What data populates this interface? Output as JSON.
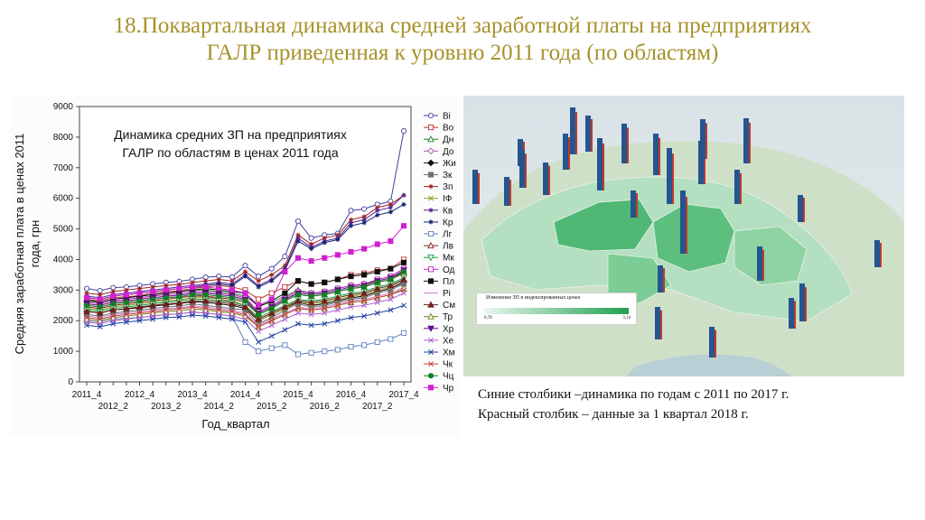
{
  "slide": {
    "title_line1": "18.Поквартальная динамика средней заработной платы на предприятиях",
    "title_line2": "ГАЛР приведенная к уровню 2011 года (по областям)"
  },
  "chart_data": {
    "type": "line",
    "title_line1": "Динамика средних ЗП на предприятиях",
    "title_line2": "ГАЛР по областям в ценах 2011 года",
    "xlabel": "Год_квартал",
    "ylabel_line1": "Средняя заработная плата в ценах 2011",
    "ylabel_line2": "года, грн",
    "ylim": [
      0,
      9000
    ],
    "yticks": [
      0,
      1000,
      2000,
      3000,
      4000,
      5000,
      6000,
      7000,
      8000,
      9000
    ],
    "x": [
      "2011_4",
      "2012_1",
      "2012_2",
      "2012_3",
      "2012_4",
      "2013_1",
      "2013_2",
      "2013_3",
      "2013_4",
      "2014_1",
      "2014_2",
      "2014_3",
      "2014_4",
      "2015_1",
      "2015_2",
      "2015_3",
      "2015_4",
      "2016_1",
      "2016_2",
      "2016_3",
      "2016_4",
      "2017_1",
      "2017_2",
      "2017_3",
      "2017_4"
    ],
    "xtick_labels_top": [
      "2011_4",
      "2012_4",
      "2013_4",
      "2014_4",
      "2015_4",
      "2016_4",
      "2017_4"
    ],
    "xtick_labels_bottom": [
      "2012_2",
      "2013_2",
      "2014_2",
      "2015_2",
      "2016_2",
      "2017_2"
    ],
    "legend_position": "right",
    "series": [
      {
        "name": "Ві",
        "color": "#4040a0",
        "marker": "circle-open",
        "values": [
          3050,
          2980,
          3080,
          3100,
          3150,
          3200,
          3250,
          3280,
          3350,
          3420,
          3450,
          3430,
          3800,
          3450,
          3700,
          4100,
          5250,
          4700,
          4800,
          4850,
          5600,
          5650,
          5800,
          5900,
          8200
        ]
      },
      {
        "name": "Во",
        "color": "#c03030",
        "marker": "square-open",
        "values": [
          2700,
          2650,
          2750,
          2780,
          2820,
          2900,
          2950,
          2980,
          3050,
          3100,
          3150,
          3100,
          3000,
          2700,
          2900,
          3100,
          3300,
          3200,
          3250,
          3350,
          3500,
          3550,
          3650,
          3700,
          4000
        ]
      },
      {
        "name": "Дн",
        "color": "#208020",
        "marker": "triangle-up-open",
        "values": [
          2700,
          2600,
          2700,
          2750,
          2800,
          2850,
          2900,
          2950,
          3000,
          3000,
          2950,
          2900,
          2800,
          2500,
          2600,
          2800,
          3000,
          2900,
          2950,
          3050,
          3150,
          3200,
          3300,
          3400,
          3600
        ]
      },
      {
        "name": "До",
        "color": "#a060a0",
        "marker": "diamond-open",
        "values": [
          2500,
          2450,
          2550,
          2600,
          2650,
          2700,
          2750,
          2780,
          2850,
          2800,
          2700,
          2600,
          2500,
          2000,
          2200,
          2400,
          2600,
          2500,
          2550,
          2650,
          2750,
          2800,
          2950,
          3050,
          3300
        ]
      },
      {
        "name": "Жи",
        "color": "#101010",
        "marker": "diamond-filled",
        "values": [
          2300,
          2250,
          2350,
          2380,
          2420,
          2480,
          2520,
          2560,
          2620,
          2600,
          2550,
          2500,
          2400,
          2000,
          2200,
          2400,
          2600,
          2500,
          2550,
          2650,
          2750,
          2800,
          2950,
          3050,
          3250
        ]
      },
      {
        "name": "Зк",
        "color": "#707070",
        "marker": "square-filled",
        "values": [
          2200,
          2150,
          2250,
          2300,
          2350,
          2400,
          2450,
          2480,
          2550,
          2500,
          2450,
          2400,
          2350,
          1900,
          2100,
          2350,
          2550,
          2450,
          2500,
          2600,
          2700,
          2750,
          2900,
          3000,
          3200
        ]
      },
      {
        "name": "Зп",
        "color": "#a02020",
        "marker": "star",
        "values": [
          2900,
          2850,
          2950,
          3000,
          3050,
          3100,
          3150,
          3180,
          3250,
          3300,
          3350,
          3300,
          3600,
          3300,
          3500,
          3800,
          4800,
          4500,
          4700,
          4800,
          5300,
          5400,
          5700,
          5800,
          6100
        ]
      },
      {
        "name": "ІФ",
        "color": "#90a020",
        "marker": "cross",
        "values": [
          2400,
          2350,
          2450,
          2500,
          2550,
          2600,
          2650,
          2680,
          2750,
          2750,
          2700,
          2650,
          2500,
          2000,
          2200,
          2400,
          2650,
          2550,
          2600,
          2700,
          2800,
          2850,
          3000,
          3100,
          3350
        ]
      },
      {
        "name": "Кв",
        "color": "#502090",
        "marker": "star",
        "values": [
          2800,
          2750,
          2850,
          2900,
          2950,
          3000,
          3050,
          3100,
          3150,
          3200,
          3250,
          3200,
          3500,
          3150,
          3350,
          3700,
          4700,
          4400,
          4600,
          4700,
          5200,
          5300,
          5600,
          5700,
          6100
        ]
      },
      {
        "name": "Кр",
        "color": "#102070",
        "marker": "star",
        "values": [
          2750,
          2700,
          2800,
          2850,
          2900,
          2950,
          3000,
          3050,
          3100,
          3150,
          3200,
          3150,
          3450,
          3100,
          3300,
          3650,
          4600,
          4350,
          4550,
          4650,
          5100,
          5200,
          5450,
          5550,
          5800
        ]
      },
      {
        "name": "Лг",
        "color": "#6080c0",
        "marker": "square-open",
        "values": [
          2000,
          1950,
          2050,
          2080,
          2100,
          2150,
          2200,
          2220,
          2280,
          2250,
          2200,
          2150,
          1300,
          1000,
          1100,
          1200,
          900,
          950,
          1000,
          1050,
          1150,
          1200,
          1300,
          1400,
          1600
        ]
      },
      {
        "name": "Лв",
        "color": "#8a2020",
        "marker": "triangle-up-open",
        "values": [
          2450,
          2400,
          2500,
          2550,
          2600,
          2650,
          2700,
          2750,
          2800,
          2800,
          2750,
          2700,
          2600,
          2200,
          2400,
          2650,
          2850,
          2800,
          2850,
          2950,
          3050,
          3100,
          3250,
          3350,
          3550
        ]
      },
      {
        "name": "Мк",
        "color": "#10a040",
        "marker": "triangle-down-open",
        "values": [
          2350,
          2300,
          2400,
          2450,
          2500,
          2550,
          2600,
          2650,
          2700,
          2700,
          2650,
          2600,
          2500,
          2100,
          2300,
          2500,
          2700,
          2650,
          2700,
          2800,
          2900,
          2950,
          3100,
          3200,
          3400
        ]
      },
      {
        "name": "Од",
        "color": "#c020c0",
        "marker": "square-open",
        "values": [
          2600,
          2550,
          2650,
          2700,
          2750,
          2800,
          2850,
          2880,
          2950,
          2950,
          2900,
          2850,
          2750,
          2300,
          2500,
          2750,
          2950,
          2900,
          2950,
          3050,
          3150,
          3200,
          3350,
          3450,
          3700
        ]
      },
      {
        "name": "Пл",
        "color": "#101010",
        "marker": "square-filled",
        "values": [
          2650,
          2600,
          2700,
          2750,
          2800,
          2850,
          2900,
          2950,
          3000,
          3050,
          3000,
          2950,
          2900,
          2450,
          2650,
          2900,
          3300,
          3200,
          3250,
          3350,
          3450,
          3500,
          3600,
          3700,
          3900
        ]
      },
      {
        "name": "Рі",
        "color": "#d080d0",
        "marker": "none",
        "values": [
          2150,
          2100,
          2200,
          2250,
          2300,
          2350,
          2400,
          2420,
          2480,
          2450,
          2400,
          2350,
          2250,
          1850,
          2050,
          2250,
          2450,
          2400,
          2450,
          2550,
          2650,
          2700,
          2800,
          2900,
          3100
        ]
      },
      {
        "name": "См",
        "color": "#702020",
        "marker": "triangle-up-filled",
        "values": [
          2300,
          2250,
          2350,
          2400,
          2450,
          2500,
          2550,
          2580,
          2650,
          2650,
          2600,
          2550,
          2450,
          2050,
          2250,
          2450,
          2650,
          2600,
          2650,
          2750,
          2850,
          2900,
          3050,
          3150,
          3350
        ]
      },
      {
        "name": "Тр",
        "color": "#808020",
        "marker": "triangle-up-open",
        "values": [
          2050,
          2000,
          2100,
          2150,
          2200,
          2250,
          2300,
          2320,
          2380,
          2350,
          2300,
          2250,
          2150,
          1800,
          2000,
          2200,
          2400,
          2350,
          2400,
          2500,
          2600,
          2650,
          2750,
          2850,
          3050
        ]
      },
      {
        "name": "Хр",
        "color": "#601080",
        "marker": "triangle-down-filled",
        "values": [
          2550,
          2500,
          2600,
          2650,
          2700,
          2750,
          2800,
          2830,
          2900,
          2900,
          2850,
          2800,
          2700,
          2250,
          2450,
          2700,
          2900,
          2850,
          2900,
          3000,
          3100,
          3150,
          3300,
          3400,
          3650
        ]
      },
      {
        "name": "Хе",
        "color": "#b060d0",
        "marker": "cross",
        "values": [
          1950,
          1900,
          2000,
          2050,
          2100,
          2150,
          2200,
          2220,
          2280,
          2250,
          2200,
          2150,
          2050,
          1650,
          1850,
          2050,
          2250,
          2200,
          2250,
          2350,
          2450,
          2500,
          2600,
          2700,
          2900
        ]
      },
      {
        "name": "Хм",
        "color": "#2040a0",
        "marker": "cross",
        "values": [
          1850,
          1800,
          1900,
          1950,
          2000,
          2050,
          2100,
          2120,
          2180,
          2150,
          2100,
          2050,
          1950,
          1300,
          1500,
          1700,
          1900,
          1850,
          1900,
          2000,
          2100,
          2150,
          2250,
          2350,
          2500
        ]
      },
      {
        "name": "Чк",
        "color": "#c04040",
        "marker": "cross",
        "values": [
          2100,
          2050,
          2150,
          2200,
          2250,
          2300,
          2350,
          2380,
          2440,
          2400,
          2350,
          2300,
          2200,
          1800,
          2000,
          2200,
          2400,
          2350,
          2400,
          2500,
          2600,
          2650,
          2750,
          2850,
          3000
        ]
      },
      {
        "name": "Чц",
        "color": "#108020",
        "marker": "circle-filled",
        "values": [
          2500,
          2450,
          2550,
          2600,
          2650,
          2700,
          2750,
          2780,
          2850,
          2850,
          2800,
          2750,
          2650,
          2200,
          2400,
          2650,
          2850,
          2800,
          2850,
          2950,
          3050,
          3100,
          3250,
          3350,
          3600
        ]
      },
      {
        "name": "Чр",
        "color": "#d020d0",
        "marker": "square-filled",
        "values": [
          2750,
          2700,
          2800,
          2850,
          2900,
          2950,
          3000,
          3050,
          3100,
          3100,
          3050,
          3000,
          2900,
          2500,
          2700,
          3600,
          4050,
          3950,
          4050,
          4150,
          4250,
          4350,
          4500,
          4600,
          5100
        ]
      }
    ]
  },
  "map": {
    "legend_title": "Изменение ЗП в индексированных ценах",
    "legend_min": "0,78",
    "legend_max": "3,14",
    "legend_colors": [
      "#e9f6ef",
      "#22a050"
    ],
    "bar_color": "#24558f",
    "bar_highlight_color": "#c0392b",
    "caption_line1": "Синие столбики –динамика по годам с 2011 по 2017 г.",
    "caption_line2": "Красный столбик – данные за 1 квартал 2018 г."
  }
}
